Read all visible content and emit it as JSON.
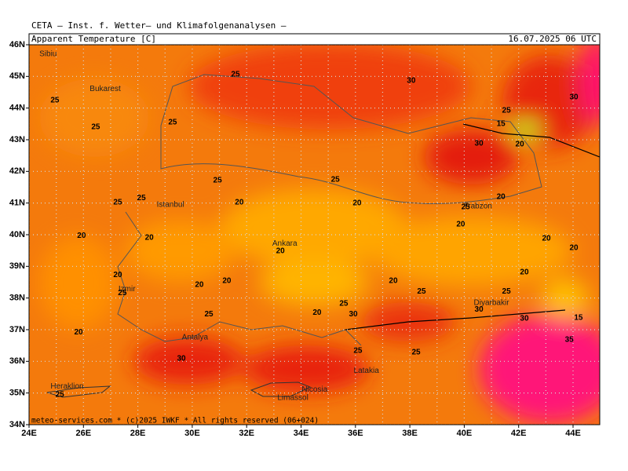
{
  "header": {
    "institute": "CETA — Inst. f. Wetter— und Klimafolgenanalysen —",
    "parameter": "Apparent Temperature [C]",
    "valid_time": "16.07.2025 06 UTC"
  },
  "map": {
    "lat_labels": [
      "46N",
      "45N",
      "44N",
      "43N",
      "42N",
      "41N",
      "40N",
      "39N",
      "38N",
      "37N",
      "36N",
      "35N",
      "34N"
    ],
    "lon_labels": [
      "24E",
      "26E",
      "28E",
      "30E",
      "32E",
      "34E",
      "36E",
      "38E",
      "40E",
      "42E",
      "44E"
    ],
    "cities": [
      {
        "name": "Sibiu",
        "lon": 24.7,
        "lat": 45.7
      },
      {
        "name": "Bukarest",
        "lon": 26.8,
        "lat": 44.6
      },
      {
        "name": "Istanbul",
        "lon": 29.2,
        "lat": 40.95
      },
      {
        "name": "Ankara",
        "lon": 33.4,
        "lat": 39.72
      },
      {
        "name": "Izmir",
        "lon": 27.6,
        "lat": 38.28
      },
      {
        "name": "Antalya",
        "lon": 30.1,
        "lat": 36.75
      },
      {
        "name": "Trabzon",
        "lon": 40.5,
        "lat": 40.9
      },
      {
        "name": "Diyarbakir",
        "lon": 41.0,
        "lat": 37.85
      },
      {
        "name": "Latakia",
        "lon": 36.4,
        "lat": 35.7
      },
      {
        "name": "Nicosia",
        "lon": 34.5,
        "lat": 35.1
      },
      {
        "name": "Limassol",
        "lon": 33.7,
        "lat": 34.85
      },
      {
        "name": "Heraklion",
        "lon": 25.4,
        "lat": 35.2
      }
    ],
    "contour_labels": [
      {
        "value": 25,
        "lon": 31.59,
        "lat": 45.06
      },
      {
        "value": 30,
        "lon": 38.05,
        "lat": 44.86
      },
      {
        "value": 25,
        "lon": 24.95,
        "lat": 44.24
      },
      {
        "value": 25,
        "lon": 29.28,
        "lat": 43.55
      },
      {
        "value": 25,
        "lon": 26.45,
        "lat": 43.4
      },
      {
        "value": 30,
        "lon": 44.03,
        "lat": 44.34
      },
      {
        "value": 25,
        "lon": 41.55,
        "lat": 43.92
      },
      {
        "value": 15,
        "lon": 41.35,
        "lat": 43.5
      },
      {
        "value": 30,
        "lon": 40.54,
        "lat": 42.88
      },
      {
        "value": 20,
        "lon": 42.04,
        "lat": 42.85
      },
      {
        "value": 25,
        "lon": 30.93,
        "lat": 41.71
      },
      {
        "value": 25,
        "lon": 35.26,
        "lat": 41.74
      },
      {
        "value": 25,
        "lon": 28.13,
        "lat": 41.16
      },
      {
        "value": 25,
        "lon": 27.26,
        "lat": 41.02
      },
      {
        "value": 20,
        "lon": 31.73,
        "lat": 41.02
      },
      {
        "value": 20,
        "lon": 36.06,
        "lat": 40.99
      },
      {
        "value": 25,
        "lon": 40.05,
        "lat": 40.87
      },
      {
        "value": 20,
        "lon": 41.35,
        "lat": 41.19
      },
      {
        "value": 20,
        "lon": 39.87,
        "lat": 40.32
      },
      {
        "value": 20,
        "lon": 25.93,
        "lat": 39.97
      },
      {
        "value": 20,
        "lon": 28.42,
        "lat": 39.9
      },
      {
        "value": 20,
        "lon": 33.24,
        "lat": 39.48
      },
      {
        "value": 20,
        "lon": 43.02,
        "lat": 39.88
      },
      {
        "value": 20,
        "lon": 44.03,
        "lat": 39.58
      },
      {
        "value": 20,
        "lon": 27.26,
        "lat": 38.73
      },
      {
        "value": 20,
        "lon": 31.27,
        "lat": 38.54
      },
      {
        "value": 20,
        "lon": 30.26,
        "lat": 38.41
      },
      {
        "value": 20,
        "lon": 37.39,
        "lat": 38.54
      },
      {
        "value": 20,
        "lon": 42.21,
        "lat": 38.81
      },
      {
        "value": 25,
        "lon": 27.43,
        "lat": 38.16
      },
      {
        "value": 25,
        "lon": 38.43,
        "lat": 38.21
      },
      {
        "value": 25,
        "lon": 41.55,
        "lat": 38.21
      },
      {
        "value": 25,
        "lon": 35.57,
        "lat": 37.82
      },
      {
        "value": 20,
        "lon": 34.59,
        "lat": 37.54
      },
      {
        "value": 25,
        "lon": 30.61,
        "lat": 37.49
      },
      {
        "value": 30,
        "lon": 35.92,
        "lat": 37.49
      },
      {
        "value": 30,
        "lon": 40.54,
        "lat": 37.64
      },
      {
        "value": 30,
        "lon": 42.21,
        "lat": 37.35
      },
      {
        "value": 15,
        "lon": 44.2,
        "lat": 37.37
      },
      {
        "value": 20,
        "lon": 25.82,
        "lat": 36.92
      },
      {
        "value": 35,
        "lon": 43.86,
        "lat": 36.68
      },
      {
        "value": 25,
        "lon": 36.09,
        "lat": 36.33
      },
      {
        "value": 30,
        "lon": 29.6,
        "lat": 36.08
      },
      {
        "value": 25,
        "lon": 38.23,
        "lat": 36.28
      },
      {
        "value": 25,
        "lon": 25.13,
        "lat": 34.94
      }
    ]
  },
  "footer": "meteo-services.com * (c)2025 IWKF * All rights reserved (06+024)"
}
